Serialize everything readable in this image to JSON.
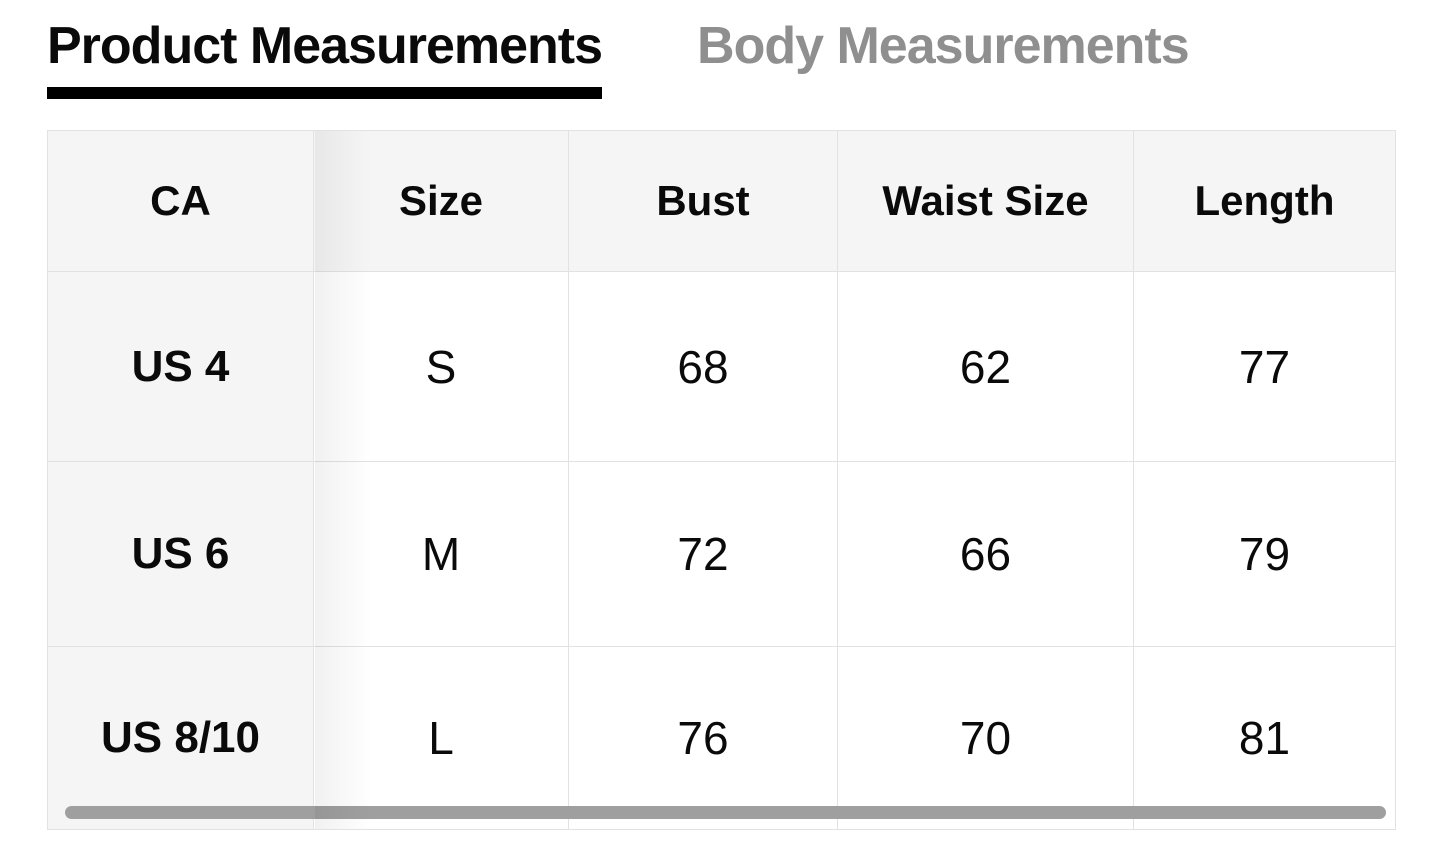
{
  "tabs": [
    {
      "label": "Product Measurements",
      "active": true
    },
    {
      "label": "Body Measurements",
      "active": false
    }
  ],
  "size_table": {
    "columns": [
      "CA",
      "Size",
      "Bust",
      "Waist Size",
      "Length"
    ],
    "rows": [
      [
        "US 4",
        "S",
        "68",
        "62",
        "77"
      ],
      [
        "US 6",
        "M",
        "72",
        "66",
        "79"
      ],
      [
        "US 8/10",
        "L",
        "76",
        "70",
        "81"
      ]
    ]
  },
  "colors": {
    "active_tab_text": "#0a0a0a",
    "active_tab_underline": "#000000",
    "inactive_tab_text": "#8f8f8f",
    "header_background": "#f5f5f5",
    "table_border": "#e2e2e2",
    "scrollbar_thumb": "#9f9f9f",
    "page_background": "#ffffff"
  }
}
